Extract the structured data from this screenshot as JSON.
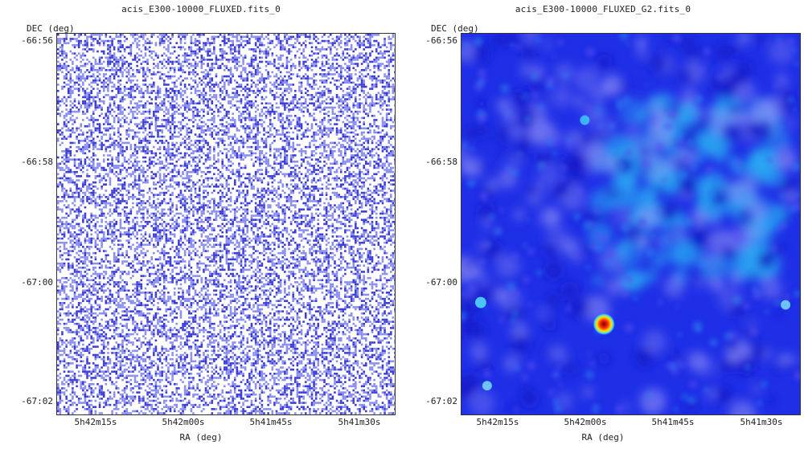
{
  "panels": [
    {
      "title": "acis_E300-10000_FLUXED.fits_0",
      "y_label": "DEC (deg)",
      "x_label": "RA (deg)",
      "y_ticks": [
        "-66:56",
        "-66:58",
        "-67:00",
        "-67:02"
      ],
      "x_ticks": [
        "5h42m15s",
        "5h42m00s",
        "5h41m45s",
        "5h41m30s"
      ]
    },
    {
      "title": "acis_E300-10000_FLUXED_G2.fits_0",
      "y_label": "DEC (deg)",
      "x_label": "RA (deg)",
      "y_ticks": [
        "-66:56",
        "-66:58",
        "-67:00",
        "-67:02"
      ],
      "x_ticks": [
        "5h42m15s",
        "5h42m00s",
        "5h41m45s",
        "5h41m30s"
      ]
    }
  ],
  "colors": {
    "raw_background": "#ffffff",
    "raw_pixel_dark": "#3b3bd6",
    "raw_pixel_light": "#8a8ef0",
    "smooth_background": "#1f2fe6",
    "smooth_mid": "#2aa8f2",
    "smooth_bright": "#d8ecff",
    "source_core": "#ff2a00",
    "source_ring": "#ffe600"
  }
}
